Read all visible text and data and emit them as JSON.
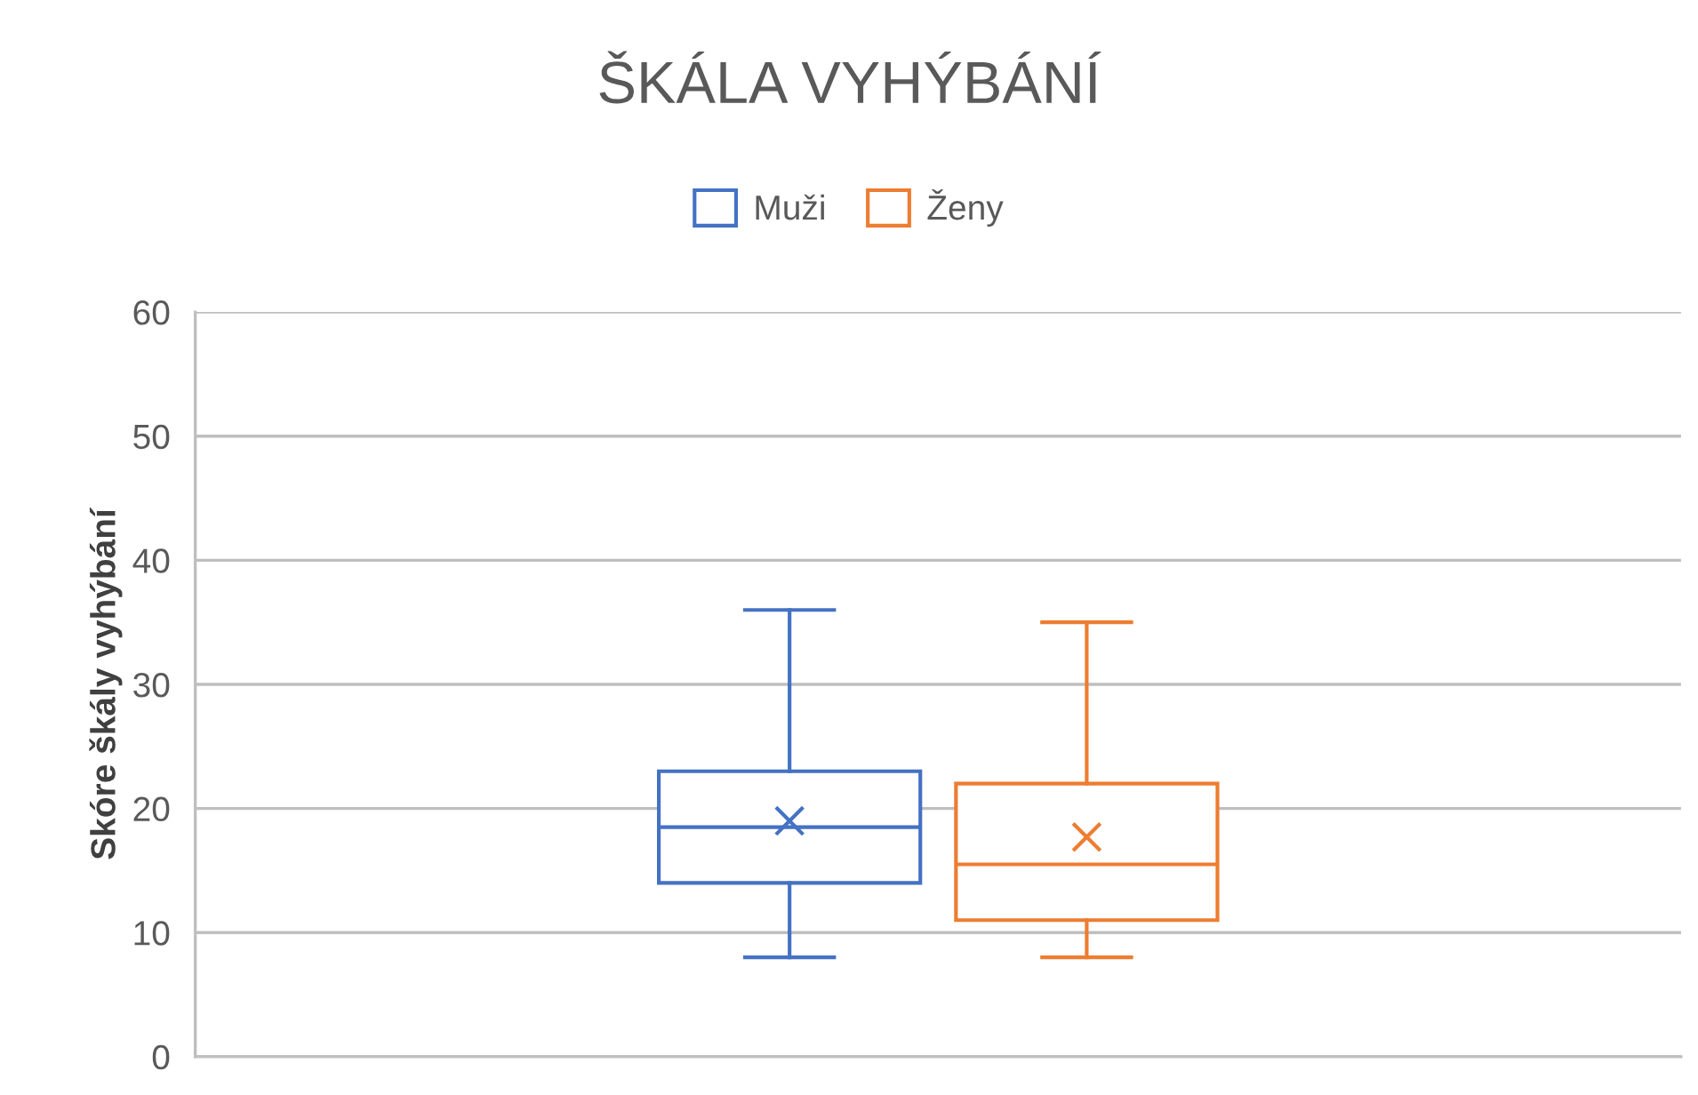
{
  "chart_data": {
    "type": "box",
    "title": "ŠKÁLA VYHÝBÁNÍ",
    "ylabel": "Skóre škály vyhýbání",
    "categories": [
      null
    ],
    "series": [
      {
        "name": "Muži",
        "color": "#4472c4",
        "boxes": [
          {
            "low": 8,
            "q1": 14,
            "median": 18.5,
            "q3": 23,
            "high": 36,
            "mean": 19
          }
        ]
      },
      {
        "name": "Ženy",
        "color": "#ed7d31",
        "boxes": [
          {
            "low": 8,
            "q1": 11,
            "median": 15.5,
            "q3": 22,
            "high": 35,
            "mean": 17.7
          }
        ]
      }
    ],
    "ylim": [
      0,
      60
    ],
    "yticks": [
      0,
      10,
      20,
      30,
      40,
      50,
      60
    ],
    "grid": "y",
    "legend": "top",
    "marker": "cross"
  }
}
